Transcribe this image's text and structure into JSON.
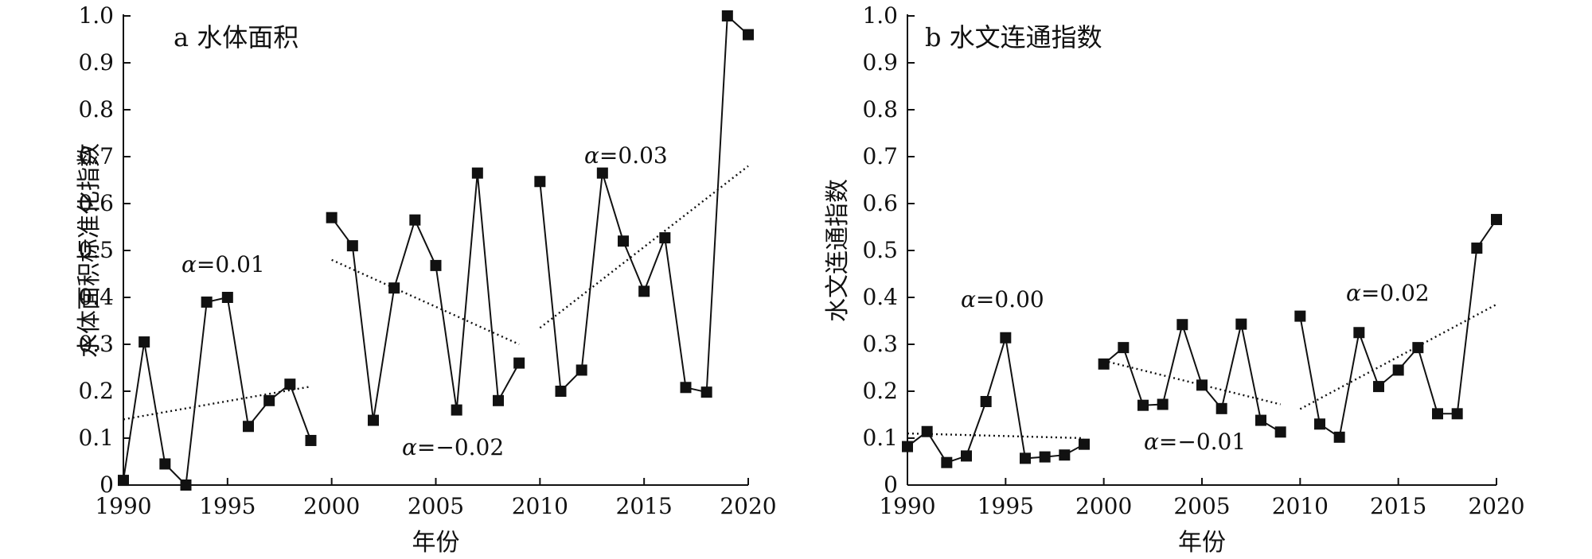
{
  "chart_data": [
    {
      "type": "line",
      "panel": "a 水体面积",
      "title": "a 水体面积",
      "xlabel": "年份",
      "ylabel": "水体面积标准化指数",
      "xlim": [
        1990,
        2020
      ],
      "ylim": [
        0,
        1.0
      ],
      "xticks": [
        "1990",
        "1995",
        "2000",
        "2005",
        "2010",
        "2015",
        "2020"
      ],
      "yticks": [
        "0",
        "0.1",
        "0.2",
        "0.3",
        "0.4",
        "0.5",
        "0.6",
        "0.7",
        "0.8",
        "0.9",
        "1.0"
      ],
      "segments": [
        {
          "x": [
            1990,
            1991,
            1992,
            1993,
            1994,
            1995,
            1996,
            1997,
            1998,
            1999
          ],
          "y": [
            0.01,
            0.305,
            0.045,
            0.0,
            0.39,
            0.4,
            0.125,
            0.18,
            0.215,
            0.095
          ],
          "trend": [
            [
              1990,
              0.14
            ],
            [
              1999,
              0.21
            ]
          ],
          "annotation": "α=0.01"
        },
        {
          "x": [
            2000,
            2001,
            2002,
            2003,
            2004,
            2005,
            2006,
            2007,
            2008,
            2009
          ],
          "y": [
            0.57,
            0.51,
            0.138,
            0.42,
            0.565,
            0.468,
            0.16,
            0.665,
            0.18,
            0.26
          ],
          "trend": [
            [
              2000,
              0.48
            ],
            [
              2009,
              0.3
            ]
          ],
          "annotation": "α=−0.02"
        },
        {
          "x": [
            2010,
            2011,
            2012,
            2013,
            2014,
            2015,
            2016,
            2017,
            2018,
            2019,
            2020
          ],
          "y": [
            0.647,
            0.2,
            0.245,
            0.665,
            0.52,
            0.413,
            0.527,
            0.208,
            0.198,
            1.0,
            0.96
          ],
          "trend": [
            [
              2010,
              0.335
            ],
            [
              2020,
              0.68
            ]
          ],
          "annotation": "α=0.03"
        }
      ]
    },
    {
      "type": "line",
      "panel": "b 水文连通指数",
      "title": "b 水文连通指数",
      "xlabel": "年份",
      "ylabel": "水文连通指数",
      "xlim": [
        1990,
        2020
      ],
      "ylim": [
        0,
        1.0
      ],
      "xticks": [
        "1990",
        "1995",
        "2000",
        "2005",
        "2010",
        "2015",
        "2020"
      ],
      "yticks": [
        "0",
        "0.1",
        "0.2",
        "0.3",
        "0.4",
        "0.5",
        "0.6",
        "0.7",
        "0.8",
        "0.9",
        "1.0"
      ],
      "segments": [
        {
          "x": [
            1990,
            1991,
            1992,
            1993,
            1994,
            1995,
            1996,
            1997,
            1998,
            1999
          ],
          "y": [
            0.082,
            0.114,
            0.048,
            0.062,
            0.178,
            0.314,
            0.057,
            0.06,
            0.064,
            0.087
          ],
          "trend": [
            [
              1990,
              0.11
            ],
            [
              1999,
              0.1
            ]
          ],
          "annotation": "α=0.00"
        },
        {
          "x": [
            2000,
            2001,
            2002,
            2003,
            2004,
            2005,
            2006,
            2007,
            2008,
            2009
          ],
          "y": [
            0.258,
            0.293,
            0.17,
            0.172,
            0.342,
            0.213,
            0.163,
            0.343,
            0.138,
            0.113
          ],
          "trend": [
            [
              2000,
              0.265
            ],
            [
              2009,
              0.172
            ]
          ],
          "annotation": "α=−0.01"
        },
        {
          "x": [
            2010,
            2011,
            2012,
            2013,
            2014,
            2015,
            2016,
            2017,
            2018,
            2019,
            2020
          ],
          "y": [
            0.36,
            0.13,
            0.102,
            0.325,
            0.21,
            0.245,
            0.293,
            0.152,
            0.152,
            0.505,
            0.566
          ],
          "trend": [
            [
              2010,
              0.162
            ],
            [
              2020,
              0.385
            ]
          ],
          "annotation": "α=0.02"
        }
      ]
    }
  ]
}
